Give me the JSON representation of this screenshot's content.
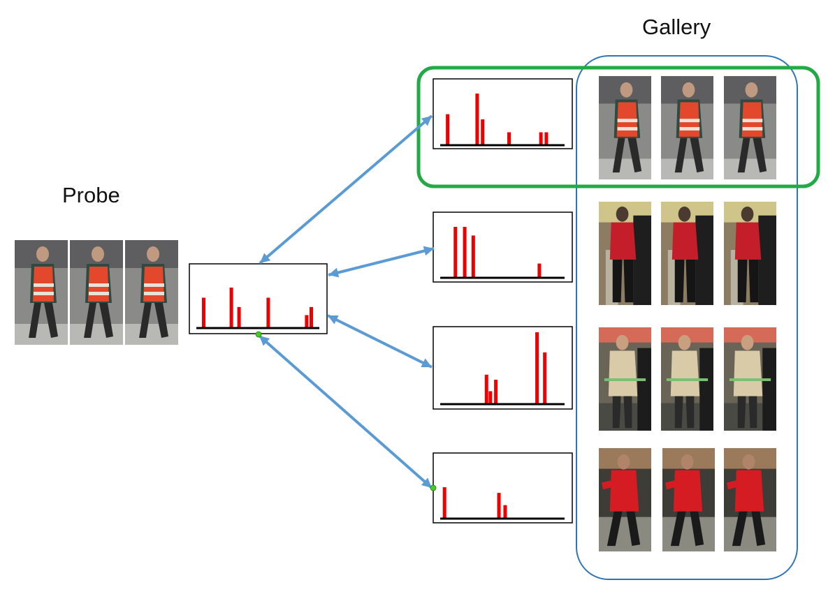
{
  "labels": {
    "probe": "Probe",
    "gallery": "Gallery"
  },
  "colors": {
    "bar": "#ee0000",
    "baseline": "#000000",
    "arrow": "#5b9bd5",
    "gallery_outline": "#2e75b6",
    "match_highlight": "#22aa44",
    "endpoint_dot": "#44cc22"
  },
  "probe": {
    "image_count": 3,
    "histogram": [
      {
        "bin": 1,
        "height": 0.75
      },
      {
        "bin": 4.6,
        "height": 1.0
      },
      {
        "bin": 5.6,
        "height": 0.52
      },
      {
        "bin": 9.4,
        "height": 0.75
      },
      {
        "bin": 14.4,
        "height": 0.32
      },
      {
        "bin": 15.0,
        "height": 0.52
      }
    ]
  },
  "gallery_rows": [
    {
      "matched": true,
      "images": [
        "person-vest-1",
        "person-vest-2",
        "person-vest-3"
      ],
      "histogram": [
        {
          "bin": 1,
          "height": 0.6
        },
        {
          "bin": 4.8,
          "height": 1.0
        },
        {
          "bin": 5.5,
          "height": 0.5
        },
        {
          "bin": 8.9,
          "height": 0.25
        },
        {
          "bin": 13.0,
          "height": 0.25
        },
        {
          "bin": 13.7,
          "height": 0.25
        }
      ]
    },
    {
      "matched": false,
      "images": [
        "person-red-jacket-1",
        "person-red-jacket-2",
        "person-red-jacket-3"
      ],
      "histogram": [
        {
          "bin": 2.0,
          "height": 1.0
        },
        {
          "bin": 3.2,
          "height": 1.0
        },
        {
          "bin": 4.3,
          "height": 0.83
        },
        {
          "bin": 12.8,
          "height": 0.28
        }
      ]
    },
    {
      "matched": false,
      "images": [
        "person-beige-coat-1",
        "person-beige-coat-2",
        "person-beige-coat-3"
      ],
      "histogram": [
        {
          "bin": 6.0,
          "height": 0.41
        },
        {
          "bin": 6.5,
          "height": 0.18
        },
        {
          "bin": 7.2,
          "height": 0.34
        },
        {
          "bin": 12.5,
          "height": 1.0
        },
        {
          "bin": 13.5,
          "height": 0.72
        }
      ]
    },
    {
      "matched": false,
      "images": [
        "person-red-coat-1",
        "person-red-coat-2",
        "person-red-coat-3"
      ],
      "histogram": [
        {
          "bin": 0.6,
          "height": 1.0
        },
        {
          "bin": 7.6,
          "height": 0.82
        },
        {
          "bin": 8.4,
          "height": 0.43
        }
      ]
    }
  ]
}
